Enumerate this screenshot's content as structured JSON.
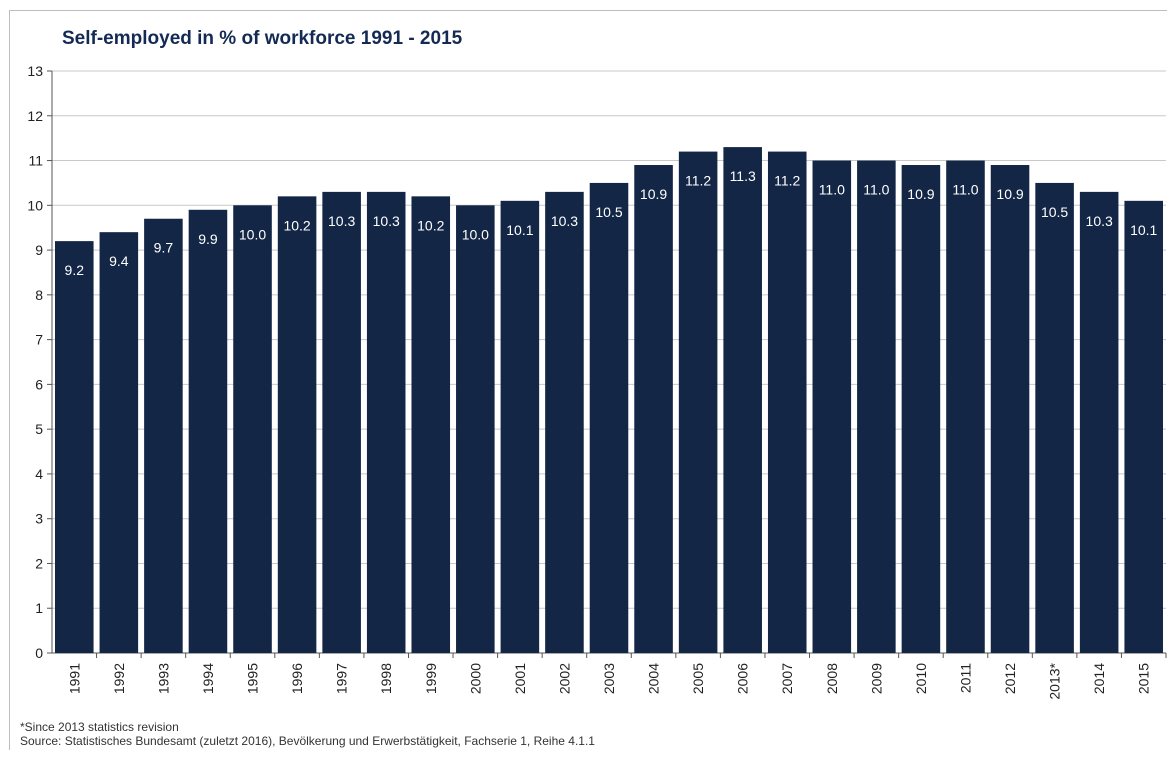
{
  "chart_data": {
    "type": "bar",
    "title": "Self-employed  in % of workforce 1991 - 2015",
    "xlabel": "",
    "ylabel": "",
    "ylim": [
      0,
      13
    ],
    "yticks": [
      0,
      1,
      2,
      3,
      4,
      5,
      6,
      7,
      8,
      9,
      10,
      11,
      12,
      13
    ],
    "grid": true,
    "legend": "none",
    "categories": [
      "1991",
      "1992",
      "1993",
      "1994",
      "1995",
      "1996",
      "1997",
      "1998",
      "1999",
      "2000",
      "2001",
      "2002",
      "2003",
      "2004",
      "2005",
      "2006",
      "2007",
      "2008",
      "2009",
      "2010",
      "2011",
      "2012",
      "2013*",
      "2014",
      "2015"
    ],
    "values": [
      9.2,
      9.4,
      9.7,
      9.9,
      10.0,
      10.2,
      10.3,
      10.3,
      10.2,
      10.0,
      10.1,
      10.3,
      10.5,
      10.9,
      11.2,
      11.3,
      11.2,
      11.0,
      11.0,
      10.9,
      11.0,
      10.9,
      10.5,
      10.3,
      10.1
    ],
    "value_labels": [
      "9.2",
      "9.4",
      "9.7",
      "9.9",
      "10.0",
      "10.2",
      "10.3",
      "10.3",
      "10.2",
      "10.0",
      "10.1",
      "10.3",
      "10.5",
      "10.9",
      "11.2",
      "11.3",
      "11.2",
      "11.0",
      "11.0",
      "10.9",
      "11.0",
      "10.9",
      "10.5",
      "10.3",
      "10.1"
    ],
    "colors": {
      "bar": "#132646",
      "grid": "#c8c8c8",
      "axis": "#555555",
      "label": "#ffffff",
      "title": "#142a54"
    }
  },
  "notes": {
    "footnote": "*Since 2013 statistics revision",
    "source": "Source: Statistisches Bundesamt (zuletzt 2016), Bevölkerung und Erwerbstätigkeit, Fachserie 1, Reihe 4.1.1"
  }
}
